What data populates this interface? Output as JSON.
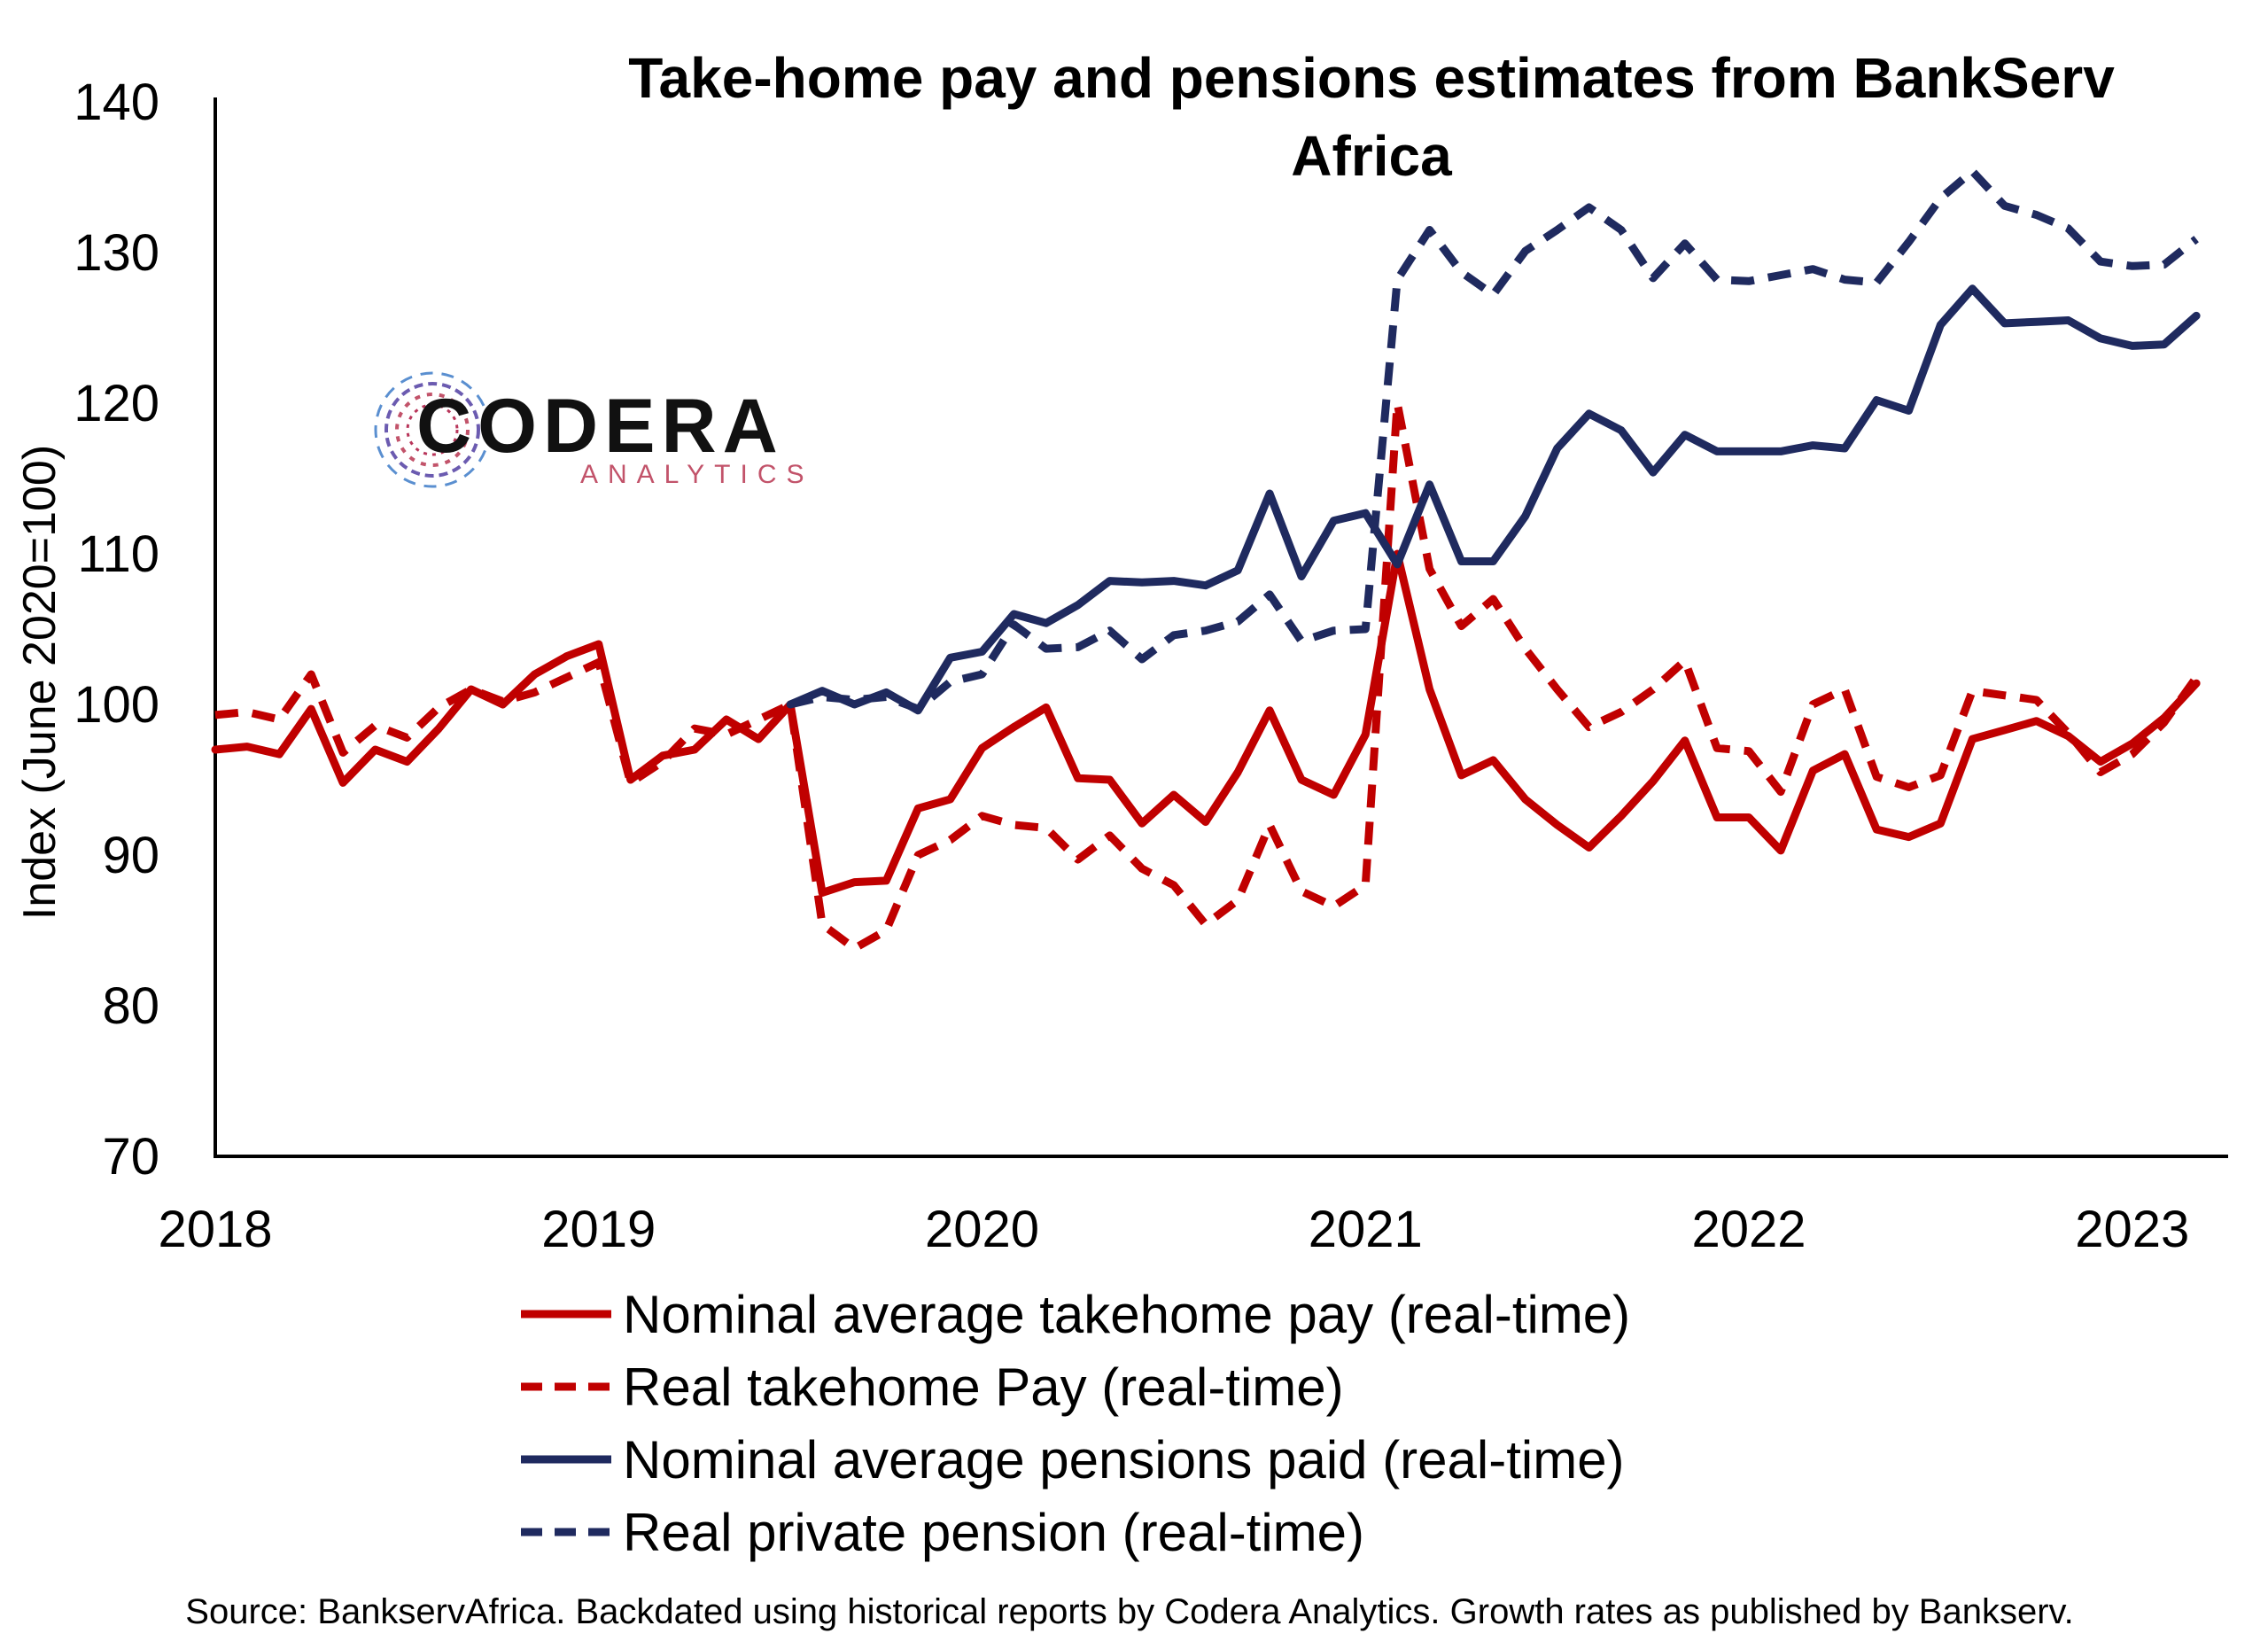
{
  "chart_data": {
    "type": "line",
    "title": "Take-home pay and pensions estimates from BankServ Africa",
    "title_lines": [
      "Take-home pay and pensions estimates from BankServ",
      "Africa"
    ],
    "ylabel": "Index (June 2020=100)",
    "xlabel": "",
    "ylim": [
      70,
      140
    ],
    "yticks": [
      70,
      80,
      90,
      100,
      110,
      120,
      130,
      140
    ],
    "xlim": [
      2018.0,
      2023.25
    ],
    "xticks": [
      "2018",
      "2019",
      "2020",
      "2021",
      "2022",
      "2023"
    ],
    "grid": false,
    "legend_position": "bottom",
    "series": [
      {
        "name": "Nominal average takehome pay (real-time)",
        "color": "#c00000",
        "dash": "solid",
        "x": [
          2018.0,
          2018.083,
          2018.167,
          2018.25,
          2018.333,
          2018.417,
          2018.5,
          2018.583,
          2018.667,
          2018.75,
          2018.833,
          2018.917,
          2019.0,
          2019.083,
          2019.167,
          2019.25,
          2019.333,
          2019.417,
          2019.5,
          2019.583,
          2019.667,
          2019.75,
          2019.833,
          2019.917,
          2020.0,
          2020.083,
          2020.167,
          2020.25,
          2020.333,
          2020.417,
          2020.5,
          2020.583,
          2020.667,
          2020.75,
          2020.833,
          2020.917,
          2021.0,
          2021.083,
          2021.167,
          2021.25,
          2021.333,
          2021.417,
          2021.5,
          2021.583,
          2021.667,
          2021.75,
          2021.833,
          2021.917,
          2022.0,
          2022.083,
          2022.167,
          2022.25,
          2022.333,
          2022.417,
          2022.5,
          2022.583,
          2022.667,
          2022.75,
          2022.833,
          2022.917,
          2023.0,
          2023.083,
          2023.167
        ],
        "values": [
          97.0,
          97.2,
          96.7,
          99.7,
          94.8,
          97.0,
          96.2,
          98.4,
          101.0,
          100.0,
          102.0,
          103.2,
          104.0,
          95.0,
          96.6,
          97.0,
          99.0,
          97.7,
          100.0,
          87.5,
          88.2,
          88.3,
          93.1,
          93.7,
          97.1,
          98.5,
          99.8,
          95.1,
          95.0,
          92.1,
          94.0,
          92.2,
          95.5,
          99.6,
          95.0,
          94.0,
          98.0,
          110.0,
          101.0,
          95.3,
          96.3,
          93.7,
          92.0,
          90.5,
          92.6,
          94.9,
          97.6,
          92.5,
          92.5,
          90.3,
          95.6,
          96.7,
          91.7,
          91.2,
          92.1,
          97.7,
          98.3,
          98.9,
          97.9,
          96.2,
          97.4,
          99.1,
          101.4
        ]
      },
      {
        "name": "Real takehome Pay (real-time)",
        "color": "#c00000",
        "dash": "dashed",
        "x": [
          2018.0,
          2018.083,
          2018.167,
          2018.25,
          2018.333,
          2018.417,
          2018.5,
          2018.583,
          2018.667,
          2018.75,
          2018.833,
          2018.917,
          2019.0,
          2019.083,
          2019.167,
          2019.25,
          2019.333,
          2019.417,
          2019.5,
          2019.583,
          2019.667,
          2019.75,
          2019.833,
          2019.917,
          2020.0,
          2020.083,
          2020.167,
          2020.25,
          2020.333,
          2020.417,
          2020.5,
          2020.583,
          2020.667,
          2020.75,
          2020.833,
          2020.917,
          2021.0,
          2021.083,
          2021.167,
          2021.25,
          2021.333,
          2021.417,
          2021.5,
          2021.583,
          2021.667,
          2021.75,
          2021.833,
          2021.917,
          2022.0,
          2022.083,
          2022.167,
          2022.25,
          2022.333,
          2022.417,
          2022.5,
          2022.583,
          2022.667,
          2022.75,
          2022.833,
          2022.917,
          2023.0,
          2023.083,
          2023.167
        ],
        "values": [
          99.3,
          99.5,
          99.0,
          102.0,
          96.8,
          98.6,
          97.8,
          99.8,
          101.0,
          100.2,
          100.8,
          101.8,
          102.8,
          94.8,
          96.2,
          98.4,
          98.0,
          99.0,
          100.0,
          85.4,
          83.8,
          85.0,
          90.0,
          91.0,
          92.6,
          92.0,
          91.8,
          89.7,
          91.3,
          89.1,
          88.0,
          85.4,
          87.0,
          92.0,
          87.6,
          86.6,
          88.0,
          120.0,
          109.0,
          105.2,
          107.0,
          103.7,
          101.0,
          98.5,
          99.5,
          101.0,
          102.9,
          97.1,
          96.9,
          94.2,
          100.0,
          101.0,
          95.2,
          94.5,
          95.3,
          100.9,
          100.6,
          100.3,
          98.1,
          95.5,
          96.7,
          98.8,
          101.8
        ]
      },
      {
        "name": "Nominal average pensions paid (real-time)",
        "color": "#1f2a5f",
        "dash": "solid",
        "x": [
          2019.5,
          2019.583,
          2019.667,
          2019.75,
          2019.833,
          2019.917,
          2020.0,
          2020.083,
          2020.167,
          2020.25,
          2020.333,
          2020.417,
          2020.5,
          2020.583,
          2020.667,
          2020.75,
          2020.833,
          2020.917,
          2021.0,
          2021.083,
          2021.167,
          2021.25,
          2021.333,
          2021.417,
          2021.5,
          2021.583,
          2021.667,
          2021.75,
          2021.833,
          2021.917,
          2022.0,
          2022.083,
          2022.167,
          2022.25,
          2022.333,
          2022.417,
          2022.5,
          2022.583,
          2022.667,
          2022.75,
          2022.833,
          2022.917,
          2023.0,
          2023.083,
          2023.167
        ],
        "values": [
          100.0,
          100.9,
          100.0,
          100.8,
          99.6,
          103.1,
          103.5,
          106.0,
          105.4,
          106.6,
          108.2,
          108.1,
          108.2,
          107.9,
          108.9,
          114.0,
          108.5,
          112.2,
          112.7,
          109.3,
          114.6,
          109.5,
          109.5,
          112.5,
          117.0,
          119.3,
          118.2,
          115.4,
          117.9,
          116.8,
          116.8,
          116.8,
          117.2,
          117.0,
          120.2,
          119.5,
          125.2,
          127.6,
          125.3,
          125.4,
          125.5,
          124.3,
          123.8,
          123.9,
          125.8
        ]
      },
      {
        "name": "Real private pension (real-time)",
        "color": "#1f2a5f",
        "dash": "dashed",
        "x": [
          2019.5,
          2019.583,
          2019.667,
          2019.75,
          2019.833,
          2019.917,
          2020.0,
          2020.083,
          2020.167,
          2020.25,
          2020.333,
          2020.417,
          2020.5,
          2020.583,
          2020.667,
          2020.75,
          2020.833,
          2020.917,
          2021.0,
          2021.083,
          2021.167,
          2021.25,
          2021.333,
          2021.417,
          2021.5,
          2021.583,
          2021.667,
          2021.75,
          2021.833,
          2021.917,
          2022.0,
          2022.083,
          2022.167,
          2022.25,
          2022.333,
          2022.417,
          2022.5,
          2022.583,
          2022.667,
          2022.75,
          2022.833,
          2022.917,
          2023.0,
          2023.083,
          2023.167
        ],
        "values": [
          100.0,
          100.5,
          100.3,
          100.5,
          99.7,
          101.5,
          102.0,
          105.3,
          103.7,
          103.8,
          104.9,
          103.0,
          104.6,
          104.9,
          105.5,
          107.3,
          104.2,
          104.9,
          105.0,
          128.2,
          131.5,
          128.7,
          127.2,
          130.1,
          131.5,
          133.0,
          131.5,
          128.3,
          130.6,
          128.2,
          128.1,
          128.5,
          128.9,
          128.2,
          128.0,
          130.7,
          133.6,
          135.4,
          133.1,
          132.5,
          131.6,
          129.4,
          129.1,
          129.2,
          130.9
        ]
      }
    ],
    "source": "Source: BankservAfrica. Backdated using historical reports by Codera Analytics. Growth rates as published by Bankserv."
  },
  "logo": {
    "name": "CODERA",
    "subtitle": "ANALYTICS",
    "icon": "codera-circuit-ring-logo"
  }
}
